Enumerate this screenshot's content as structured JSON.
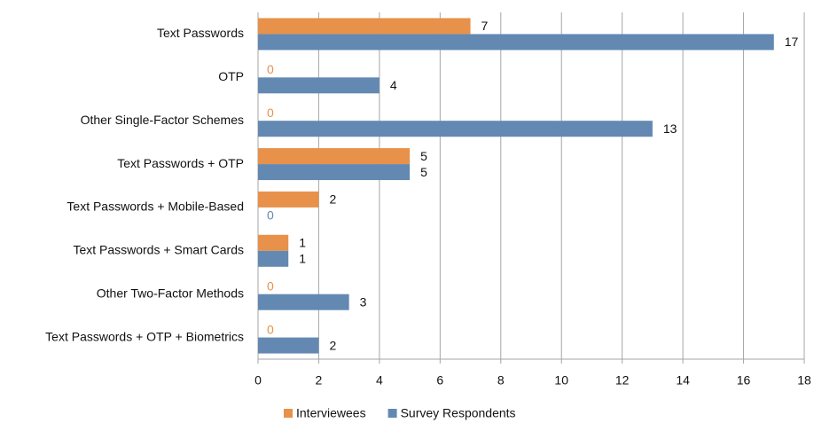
{
  "chart_data": {
    "type": "bar",
    "orientation": "horizontal",
    "categories": [
      "Text Passwords",
      "OTP",
      "Other Single-Factor Schemes",
      "Text Passwords + OTP",
      "Text Passwords + Mobile-Based",
      "Text Passwords + Smart Cards",
      "Other Two-Factor Methods",
      "Text Passwords + OTP + Biometrics"
    ],
    "series": [
      {
        "name": "Interviewees",
        "color": "#e8914a",
        "values": [
          7,
          0,
          0,
          5,
          2,
          1,
          0,
          0
        ]
      },
      {
        "name": "Survey Respondents",
        "color": "#6389b2",
        "values": [
          17,
          4,
          13,
          5,
          0,
          1,
          3,
          2
        ]
      }
    ],
    "xlim": [
      0,
      18
    ],
    "xticks": [
      0,
      2,
      4,
      6,
      8,
      10,
      12,
      14,
      16,
      18
    ],
    "grid": true,
    "legend": "bottom"
  }
}
